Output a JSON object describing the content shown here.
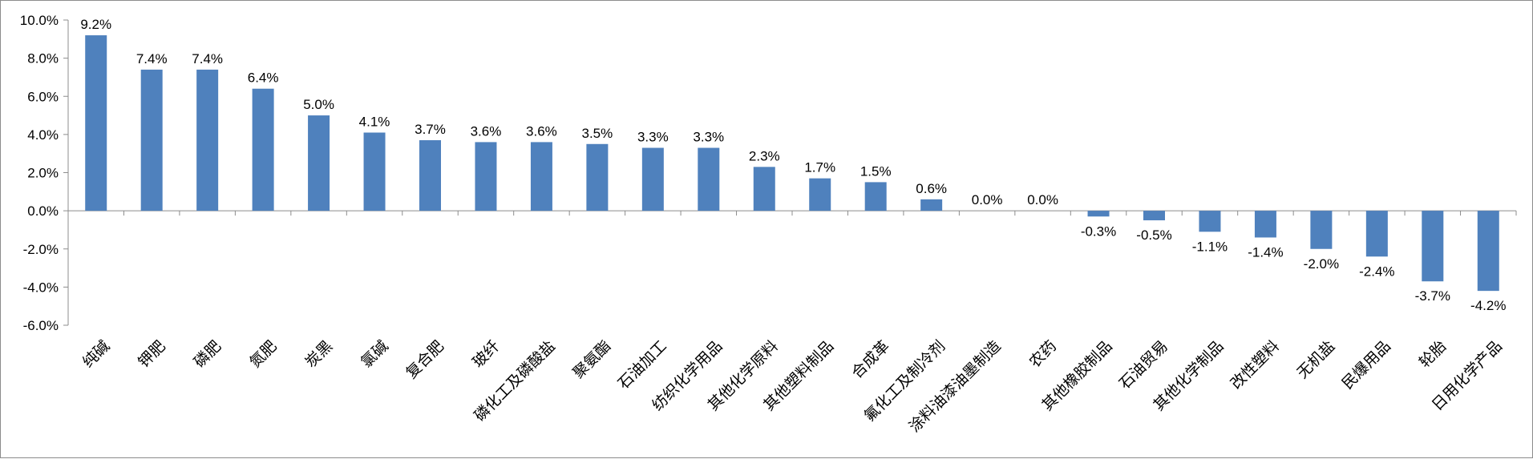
{
  "chart_data": {
    "type": "bar",
    "title": "",
    "xlabel": "",
    "ylabel": "",
    "ylim": [
      -6,
      10
    ],
    "y_ticks": [
      "10.0%",
      "8.0%",
      "6.0%",
      "4.0%",
      "2.0%",
      "0.0%",
      "-2.0%",
      "-4.0%",
      "-6.0%"
    ],
    "y_tick_values": [
      10,
      8,
      6,
      4,
      2,
      0,
      -2,
      -4,
      -6
    ],
    "bar_color": "#4f81bd",
    "categories": [
      "纯碱",
      "钾肥",
      "磷肥",
      "氮肥",
      "炭黑",
      "氯碱",
      "复合肥",
      "玻纤",
      "磷化工及磷酸盐",
      "聚氨酯",
      "石油加工",
      "纺织化学用品",
      "其他化学原料",
      "其他塑料制品",
      "合成革",
      "氟化工及制冷剂",
      "涂料油漆油墨制造",
      "农药",
      "其他橡胶制品",
      "石油贸易",
      "其他化学制品",
      "改性塑料",
      "无机盐",
      "民爆用品",
      "轮胎",
      "日用化学产品"
    ],
    "values": [
      9.2,
      7.4,
      7.4,
      6.4,
      5.0,
      4.1,
      3.7,
      3.6,
      3.6,
      3.5,
      3.3,
      3.3,
      2.3,
      1.7,
      1.5,
      0.6,
      0.0,
      0.0,
      -0.3,
      -0.5,
      -1.1,
      -1.4,
      -2.0,
      -2.4,
      -3.7,
      -4.2
    ],
    "labels": [
      "9.2%",
      "7.4%",
      "7.4%",
      "6.4%",
      "5.0%",
      "4.1%",
      "3.7%",
      "3.6%",
      "3.6%",
      "3.5%",
      "3.3%",
      "3.3%",
      "2.3%",
      "1.7%",
      "1.5%",
      "0.6%",
      "0.0%",
      "0.0%",
      "-0.3%",
      "-0.5%",
      "-1.1%",
      "-1.4%",
      "-2.0%",
      "-2.4%",
      "-3.7%",
      "-4.2%"
    ]
  }
}
